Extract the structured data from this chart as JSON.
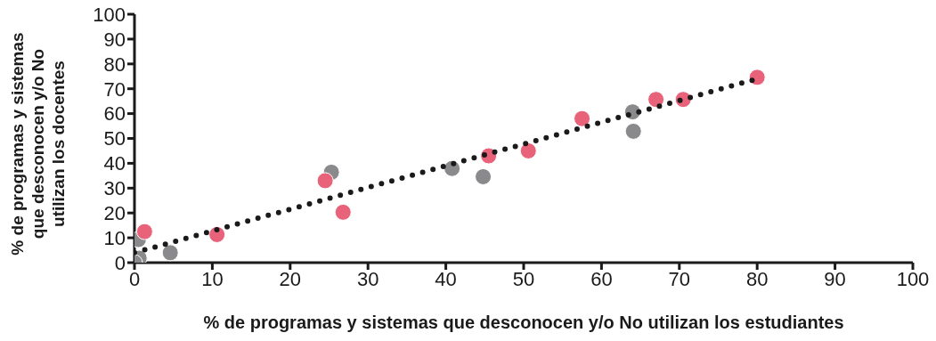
{
  "chart_data": {
    "type": "scatter",
    "xlabel": "% de programas y sistemas que desconocen y/o No utilizan los estudiantes",
    "ylabel": "% de programas y sistemas que desconocen y/o No utilizan los docentes",
    "xlim": [
      0,
      100
    ],
    "xticks": [
      0,
      10,
      20,
      30,
      40,
      50,
      60,
      70,
      80,
      90,
      100
    ],
    "ylim": [
      0,
      100
    ],
    "yticks": [
      0,
      10,
      20,
      30,
      40,
      50,
      60,
      70,
      80,
      90,
      100
    ],
    "grid": false,
    "legend": false,
    "marker": "circle",
    "series": [
      {
        "color": "#8a8a8c",
        "x": [
          0.6,
          0.5,
          4.6,
          25.3,
          40.8,
          44.8,
          64,
          64.1,
          0
        ],
        "values": [
          1.8,
          9.3,
          4,
          36.4,
          37.9,
          34.6,
          60.7,
          52.9,
          0
        ]
      },
      {
        "color": "#e8627a",
        "x": [
          1.3,
          10.6,
          24.5,
          26.8,
          45.5,
          50.6,
          57.5,
          67,
          70.5,
          80
        ],
        "values": [
          12.5,
          11.3,
          33,
          20.3,
          43,
          45,
          58,
          65.7,
          65.7,
          74.6
        ]
      },
      {
        "type": "line",
        "color": "#1a1a1a",
        "line_style": "dotted",
        "marker": "none",
        "x": [
          0,
          80
        ],
        "values": [
          4,
          74
        ]
      }
    ]
  }
}
